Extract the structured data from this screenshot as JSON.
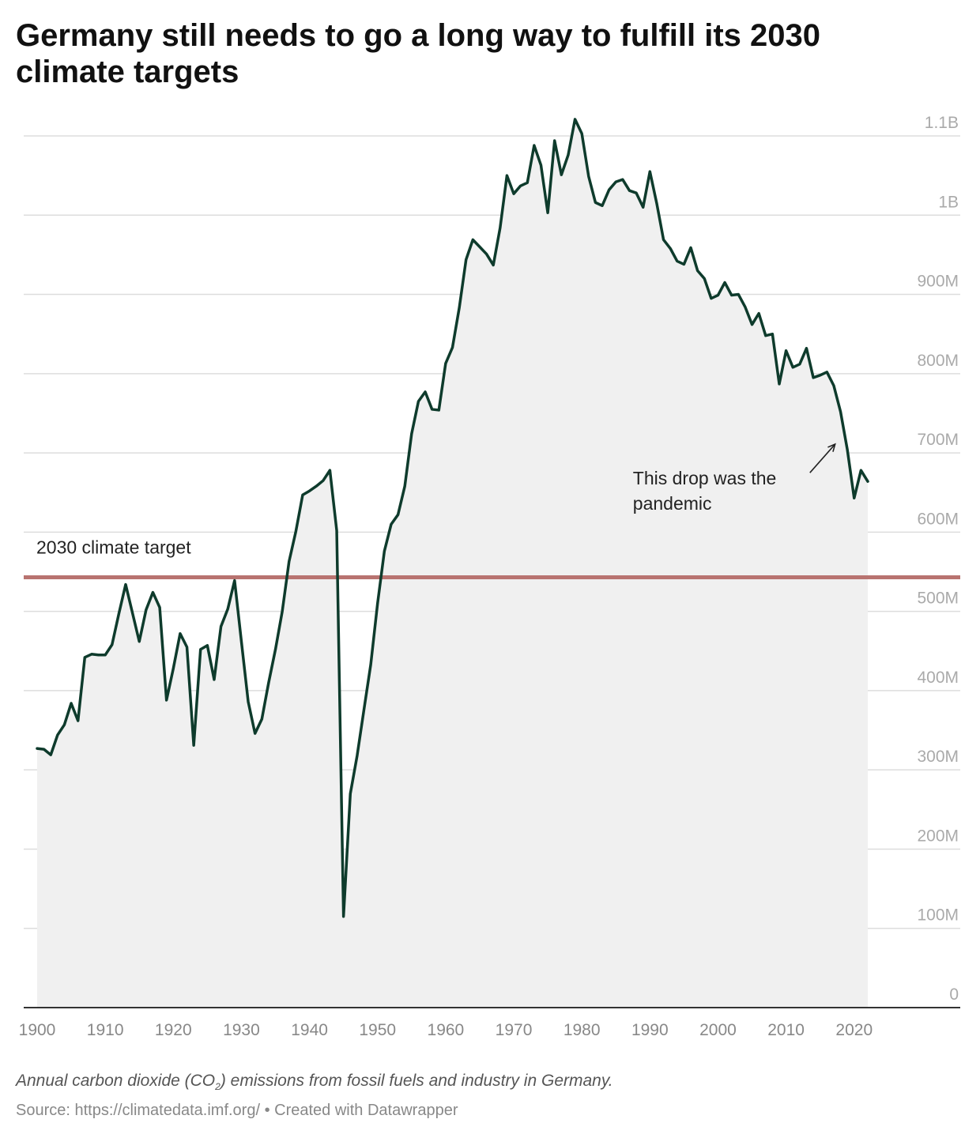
{
  "header": {
    "title": "Germany still needs to go a long way to fulfill its 2030 climate targets"
  },
  "footer": {
    "description_before": "Annual carbon dioxide (CO",
    "description_sub": "2",
    "description_after": ") emissions from fossil fuels and industry in Germany.",
    "source": "Source: https://climatedata.imf.org/ • Created with Datawrapper"
  },
  "colors": {
    "line": "#0e3b2c",
    "area": "#f0f0f0",
    "target": "#b87370",
    "grid": "#dddddd",
    "axis": "#333333"
  },
  "chart_data": {
    "type": "area",
    "xlim": [
      1898,
      2035
    ],
    "ylim": [
      0,
      1100000000
    ],
    "grid": true,
    "x_ticks": [
      1900,
      1910,
      1920,
      1930,
      1940,
      1950,
      1960,
      1970,
      1980,
      1990,
      2000,
      2010,
      2020
    ],
    "y_ticks": [
      {
        "value": 0,
        "label": "0"
      },
      {
        "value": 100000000,
        "label": "100M"
      },
      {
        "value": 200000000,
        "label": "200M"
      },
      {
        "value": 300000000,
        "label": "300M"
      },
      {
        "value": 400000000,
        "label": "400M"
      },
      {
        "value": 500000000,
        "label": "500M"
      },
      {
        "value": 600000000,
        "label": "600M"
      },
      {
        "value": 700000000,
        "label": "700M"
      },
      {
        "value": 800000000,
        "label": "800M"
      },
      {
        "value": 900000000,
        "label": "900M"
      },
      {
        "value": 1000000000,
        "label": "1B"
      },
      {
        "value": 1100000000,
        "label": "1.1B"
      }
    ],
    "target": {
      "label": "2030 climate target",
      "value": 543000000
    },
    "annotations": [
      {
        "lines": [
          "This drop was the",
          "pandemic"
        ],
        "arrow_from": [
          2013.5,
          675000000
        ],
        "arrow_to": [
          2017.2,
          711000000
        ],
        "anchor": [
          1987.5,
          660000000
        ]
      }
    ],
    "series": [
      {
        "x": [
          1900,
          1901,
          1902,
          1903,
          1904,
          1905,
          1906,
          1907,
          1908,
          1909,
          1910,
          1911,
          1912,
          1913,
          1914,
          1915,
          1916,
          1917,
          1918,
          1919,
          1920,
          1921,
          1922,
          1923,
          1924,
          1925,
          1926,
          1927,
          1928,
          1929,
          1930,
          1931,
          1932,
          1933,
          1934,
          1935,
          1936,
          1937,
          1938,
          1939,
          1940,
          1941,
          1942,
          1943,
          1944,
          1945,
          1946,
          1947,
          1948,
          1949,
          1950,
          1951,
          1952,
          1953,
          1954,
          1955,
          1956,
          1957,
          1958,
          1959,
          1960,
          1961,
          1962,
          1963,
          1964,
          1965,
          1966,
          1967,
          1968,
          1969,
          1970,
          1971,
          1972,
          1973,
          1974,
          1975,
          1976,
          1977,
          1978,
          1979,
          1980,
          1981,
          1982,
          1983,
          1984,
          1985,
          1986,
          1987,
          1988,
          1989,
          1990,
          1991,
          1992,
          1993,
          1994,
          1995,
          1996,
          1997,
          1998,
          1999,
          2000,
          2001,
          2002,
          2003,
          2004,
          2005,
          2006,
          2007,
          2008,
          2009,
          2010,
          2011,
          2012,
          2013,
          2014,
          2015,
          2016,
          2017,
          2018,
          2019,
          2020,
          2021,
          2022
        ],
        "values": [
          327000000,
          326000000,
          319000000,
          344000000,
          357000000,
          384000000,
          362000000,
          442000000,
          446000000,
          445000000,
          445000000,
          458000000,
          497000000,
          534000000,
          498000000,
          462000000,
          502000000,
          524000000,
          505000000,
          388000000,
          428000000,
          472000000,
          455000000,
          331000000,
          452000000,
          457000000,
          414000000,
          481000000,
          503000000,
          539000000,
          462000000,
          386000000,
          346000000,
          364000000,
          410000000,
          452000000,
          500000000,
          563000000,
          601000000,
          647000000,
          652000000,
          658000000,
          665000000,
          678000000,
          602000000,
          115000000,
          270000000,
          318000000,
          376000000,
          433000000,
          510000000,
          576000000,
          610000000,
          622000000,
          658000000,
          724000000,
          765000000,
          777000000,
          755000000,
          754000000,
          813000000,
          833000000,
          883000000,
          944000000,
          969000000,
          960000000,
          951000000,
          937000000,
          984000000,
          1050000000,
          1027000000,
          1037000000,
          1041000000,
          1088000000,
          1063000000,
          1003000000,
          1094000000,
          1051000000,
          1076000000,
          1121000000,
          1103000000,
          1049000000,
          1016000000,
          1012000000,
          1032000000,
          1042000000,
          1045000000,
          1031000000,
          1028000000,
          1010000000,
          1055000000,
          1015000000,
          969000000,
          958000000,
          942000000,
          938000000,
          959000000,
          930000000,
          920000000,
          895000000,
          899000000,
          915000000,
          899000000,
          900000000,
          884000000,
          862000000,
          876000000,
          848000000,
          850000000,
          787000000,
          829000000,
          808000000,
          812000000,
          832000000,
          795000000,
          798000000,
          802000000,
          785000000,
          752000000,
          704000000,
          643000000,
          678000000,
          664000000
        ]
      }
    ]
  }
}
